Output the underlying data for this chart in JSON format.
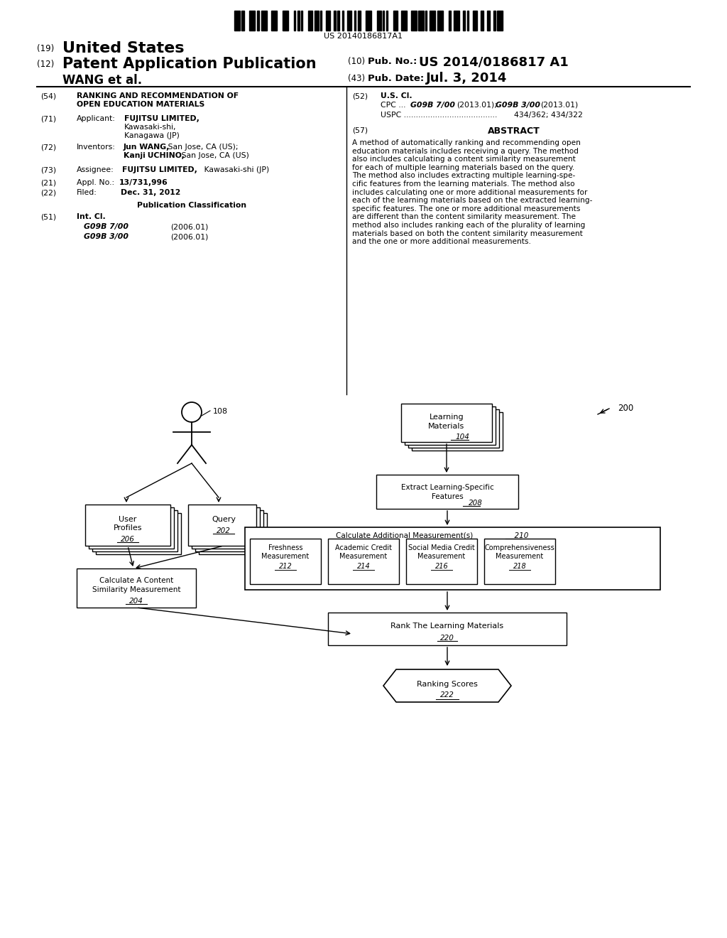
{
  "bg_color": "#ffffff",
  "barcode_text": "US 20140186817A1",
  "header": {
    "num19": "(19)",
    "title19": "United States",
    "num12": "(12)",
    "title12": "Patent Application Publication",
    "authors": "WANG et al.",
    "num10": "(10)",
    "pubno_label": "Pub. No.:",
    "pubno": "US 2014/0186817 A1",
    "num43": "(43)",
    "date_label": "Pub. Date:",
    "date": "Jul. 3, 2014"
  },
  "abstract": "A method of automatically ranking and recommending open\neducation materials includes receiving a query. The method\nalso includes calculating a content similarity measurement\nfor each of multiple learning materials based on the query.\nThe method also includes extracting multiple learning-spe-\ncific features from the learning materials. The method also\nincludes calculating one or more additional measurements for\neach of the learning materials based on the extracted learning-\nspecific features. The one or more additional measurements\nare different than the content similarity measurement. The\nmethod also includes ranking each of the plurality of learning\nmaterials based on both the content similarity measurement\nand the one or more additional measurements."
}
